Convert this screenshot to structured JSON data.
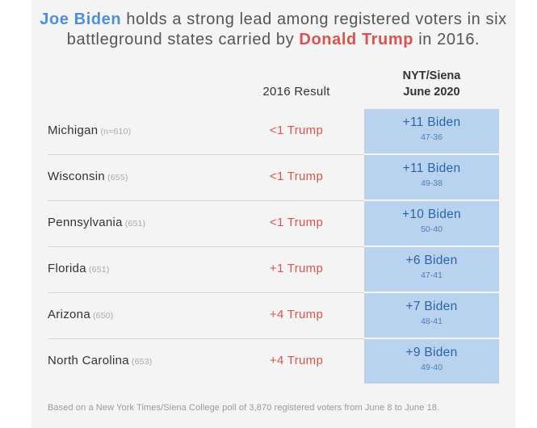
{
  "headline": {
    "biden": "Joe Biden",
    "part1": " holds a strong lead among registered voters in six battleground states carried by ",
    "trump": "Donald Trump",
    "part2": " in 2016."
  },
  "colors": {
    "biden": "#4f8fd6",
    "trump": "#d9534f",
    "highlight_cell": "#b9d3ee"
  },
  "chart_data": {
    "type": "table",
    "columns": [
      "",
      "2016 Result",
      "NYT/Siena June 2020"
    ],
    "column_headers": {
      "result_2016": "2016 Result",
      "nyt_line1": "NYT/Siena",
      "nyt_line2": "June 2020"
    },
    "rows": [
      {
        "state": "Michigan",
        "n": "(n=610)",
        "result_2016": "<1 Trump",
        "margin": "+11 Biden",
        "split": "47-36"
      },
      {
        "state": "Wisconsin",
        "n": "(655)",
        "result_2016": "<1 Trump",
        "margin": "+11 Biden",
        "split": "49-38"
      },
      {
        "state": "Pennsylvania",
        "n": "(651)",
        "result_2016": "<1 Trump",
        "margin": "+10 Biden",
        "split": "50-40"
      },
      {
        "state": "Florida",
        "n": "(651)",
        "result_2016": "+1 Trump",
        "margin": "+6 Biden",
        "split": "47-41"
      },
      {
        "state": "Arizona",
        "n": "(650)",
        "result_2016": "+4 Trump",
        "margin": "+7 Biden",
        "split": "48-41"
      },
      {
        "state": "North Carolina",
        "n": "(653)",
        "result_2016": "+4 Trump",
        "margin": "+9 Biden",
        "split": "49-40"
      }
    ]
  },
  "footnote": "Based on a New York Times/Siena College poll of 3,870 registered voters from June 8 to June 18."
}
